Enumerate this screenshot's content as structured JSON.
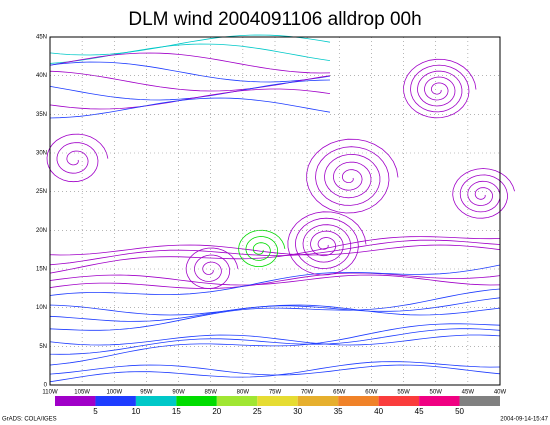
{
  "title": "DLM wind 2004091106 alldrop 00h",
  "lat_labels": [
    "0",
    "5N",
    "10N",
    "15N",
    "20N",
    "25N",
    "30N",
    "35N",
    "40N",
    "45N"
  ],
  "lon_labels": [
    "110W",
    "105W",
    "100W",
    "95W",
    "90W",
    "85W",
    "80W",
    "75W",
    "70W",
    "65W",
    "60W",
    "55W",
    "50W",
    "45W",
    "40W"
  ],
  "colorbar": {
    "colors": [
      "#a000c8",
      "#1e3cff",
      "#00c8c8",
      "#00dc00",
      "#a0e632",
      "#e6dc32",
      "#e6af2d",
      "#f08228",
      "#fa3c3c",
      "#f00082",
      "#808080"
    ],
    "labels": [
      "5",
      "10",
      "15",
      "20",
      "25",
      "30",
      "35",
      "40",
      "45",
      "50"
    ]
  },
  "footer_left": "GrADS: COLA/IGES",
  "footer_right": "2004-09-14-15:47"
}
